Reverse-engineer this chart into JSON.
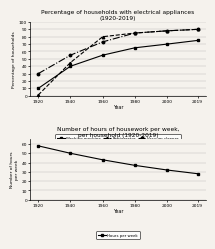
{
  "years": [
    1920,
    1940,
    1960,
    1980,
    2000,
    2019
  ],
  "washing_machine": [
    10,
    40,
    55,
    65,
    70,
    75
  ],
  "refrigerator": [
    1,
    45,
    80,
    85,
    88,
    90
  ],
  "vacuum_cleaner": [
    30,
    55,
    73,
    85,
    88,
    90
  ],
  "hours_per_week": [
    58,
    50,
    43,
    37,
    32,
    28
  ],
  "title1": "Percentage of households with electrical appliances\n(1920-2019)",
  "title2": "Number of hours of housework per week,\nper household (1920-2019)",
  "ylabel1": "Percentage of households",
  "ylabel2": "Number of hours\nper week",
  "xlabel": "Year",
  "ylim1": [
    0,
    100
  ],
  "ylim2": [
    0,
    65
  ],
  "yticks1": [
    0,
    10,
    20,
    30,
    40,
    50,
    60,
    70,
    80,
    90,
    100
  ],
  "yticks2": [
    0,
    10,
    20,
    30,
    40,
    50,
    60
  ],
  "legend1_labels": [
    "Washing machine",
    "Refrigerator",
    "Vacuum cleaner"
  ],
  "legend2_labels": [
    "Hours per week"
  ],
  "bg_color": "#f5f2ed"
}
